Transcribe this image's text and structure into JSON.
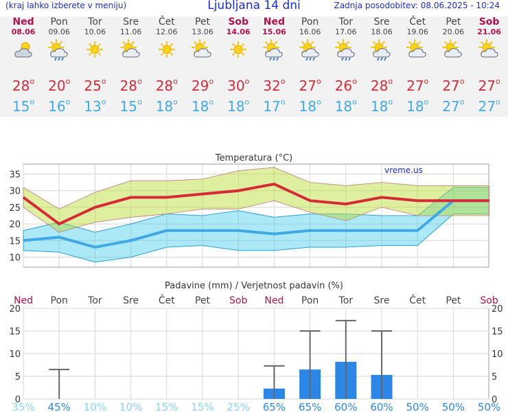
{
  "header": {
    "menu_note": "(kraj lahko izberete v meniju)",
    "title": "Ljubljana 14 dni",
    "updated": "Zadnja posodobitev: 08.06.2025 - 10:24"
  },
  "colors": {
    "weekend": "#b3114e",
    "max": "#d62a36",
    "min": "#3fa9e6",
    "bar": "#2b86e6",
    "title_blue": "#1b2bd6"
  },
  "days": [
    {
      "name": "Ned",
      "date": "08.06",
      "weekend": true,
      "icon": "cloud-sun-icon",
      "max": "28",
      "min": "15"
    },
    {
      "name": "Pon",
      "date": "09.06",
      "weekend": false,
      "icon": "sun-cloud-rain-icon",
      "max": "20",
      "min": "16"
    },
    {
      "name": "Tor",
      "date": "10.06",
      "weekend": false,
      "icon": "sun-icon",
      "max": "25",
      "min": "13"
    },
    {
      "name": "Sre",
      "date": "11.06",
      "weekend": false,
      "icon": "sun-cloud-icon",
      "max": "28",
      "min": "15"
    },
    {
      "name": "Čet",
      "date": "12.06",
      "weekend": false,
      "icon": "sun-icon",
      "max": "28",
      "min": "18"
    },
    {
      "name": "Pet",
      "date": "13.06",
      "weekend": false,
      "icon": "sun-cloud-icon",
      "max": "29",
      "min": "18"
    },
    {
      "name": "Sob",
      "date": "14.06",
      "weekend": true,
      "icon": "sun-icon",
      "max": "30",
      "min": "18"
    },
    {
      "name": "Ned",
      "date": "15.06",
      "weekend": true,
      "icon": "sun-cloud-rain-icon",
      "max": "32",
      "min": "17"
    },
    {
      "name": "Pon",
      "date": "16.06",
      "weekend": false,
      "icon": "sun-cloud-rain-icon",
      "max": "27",
      "min": "18"
    },
    {
      "name": "Tor",
      "date": "17.06",
      "weekend": false,
      "icon": "sun-cloud-rain-icon",
      "max": "26",
      "min": "18"
    },
    {
      "name": "Sre",
      "date": "18.06",
      "weekend": false,
      "icon": "sun-cloud-rain-icon",
      "max": "28",
      "min": "18"
    },
    {
      "name": "Čet",
      "date": "19.06",
      "weekend": false,
      "icon": "sun-cloud-icon",
      "max": "27",
      "min": "18"
    },
    {
      "name": "Pet",
      "date": "20.06",
      "weekend": false,
      "icon": "sun-cloud-icon",
      "max": "27",
      "min": "27"
    },
    {
      "name": "Sob",
      "date": "21.06",
      "weekend": true,
      "icon": "sun-cloud-icon",
      "max": "27",
      "min": "27"
    }
  ],
  "chart_data": [
    {
      "type": "line",
      "title": "Temperatura (°C)",
      "watermark": "vreme.us",
      "categories": [
        "Ned",
        "Pon",
        "Tor",
        "Sre",
        "Čet",
        "Pet",
        "Sob",
        "Ned",
        "Pon",
        "Tor",
        "Sre",
        "Čet",
        "Pet",
        "Sob"
      ],
      "ylim": [
        7,
        38
      ],
      "yticks": [
        10,
        15,
        20,
        25,
        30,
        35
      ],
      "grid": true,
      "series": [
        {
          "kind": "max",
          "values": [
            28,
            20,
            25,
            28,
            28,
            29,
            30,
            32,
            27,
            26,
            28,
            27,
            27,
            27
          ]
        },
        {
          "kind": "max-upper",
          "values": [
            31,
            24.5,
            29.5,
            33,
            33,
            33.5,
            36,
            37,
            32.5,
            31.5,
            32.5,
            31.5,
            31.5,
            31.5
          ]
        },
        {
          "kind": "max-lower",
          "values": [
            25,
            17.5,
            20.5,
            22,
            23,
            24.5,
            24.5,
            27,
            23.5,
            21,
            25,
            22.5,
            22.5,
            22.5
          ]
        },
        {
          "kind": "min",
          "values": [
            15,
            16,
            13,
            15,
            18,
            18,
            18,
            17,
            18,
            18,
            18,
            18,
            27,
            27
          ]
        },
        {
          "kind": "min-upper",
          "values": [
            18,
            20.5,
            17.5,
            20,
            23,
            22.5,
            24,
            22,
            23,
            23,
            22.5,
            22.5,
            31,
            31
          ]
        },
        {
          "kind": "min-lower",
          "values": [
            12,
            11.5,
            8.5,
            10,
            13,
            13.5,
            12,
            12,
            13,
            13,
            13.5,
            13.5,
            23,
            23
          ]
        }
      ]
    },
    {
      "type": "bar",
      "title": "Padavine (mm) / Verjetnost padavin (%)",
      "categories": [
        "Ned",
        "Pon",
        "Tor",
        "Sre",
        "Čet",
        "Pet",
        "Sob",
        "Ned",
        "Pon",
        "Tor",
        "Sre",
        "Čet",
        "Pet",
        "Sob"
      ],
      "ylim": [
        0,
        20
      ],
      "yticks": [
        0,
        5,
        10,
        15,
        20
      ],
      "grid": true,
      "series": [
        {
          "kind": "precip",
          "values": [
            0,
            0,
            0,
            0,
            0,
            0,
            0,
            2.3,
            6.5,
            8.2,
            5.3,
            0,
            0,
            0
          ]
        },
        {
          "kind": "precip-max",
          "values": [
            0,
            6.5,
            0,
            0,
            0,
            0,
            0,
            7.3,
            15,
            17.3,
            15,
            0,
            0,
            0
          ]
        }
      ],
      "probabilities": [
        "35%",
        "45%",
        "10%",
        "10%",
        "15%",
        "15%",
        "25%",
        "65%",
        "65%",
        "60%",
        "60%",
        "50%",
        "50%",
        "50%"
      ],
      "probability_strong": [
        false,
        true,
        false,
        false,
        false,
        false,
        false,
        true,
        true,
        true,
        true,
        true,
        true,
        true
      ]
    }
  ]
}
